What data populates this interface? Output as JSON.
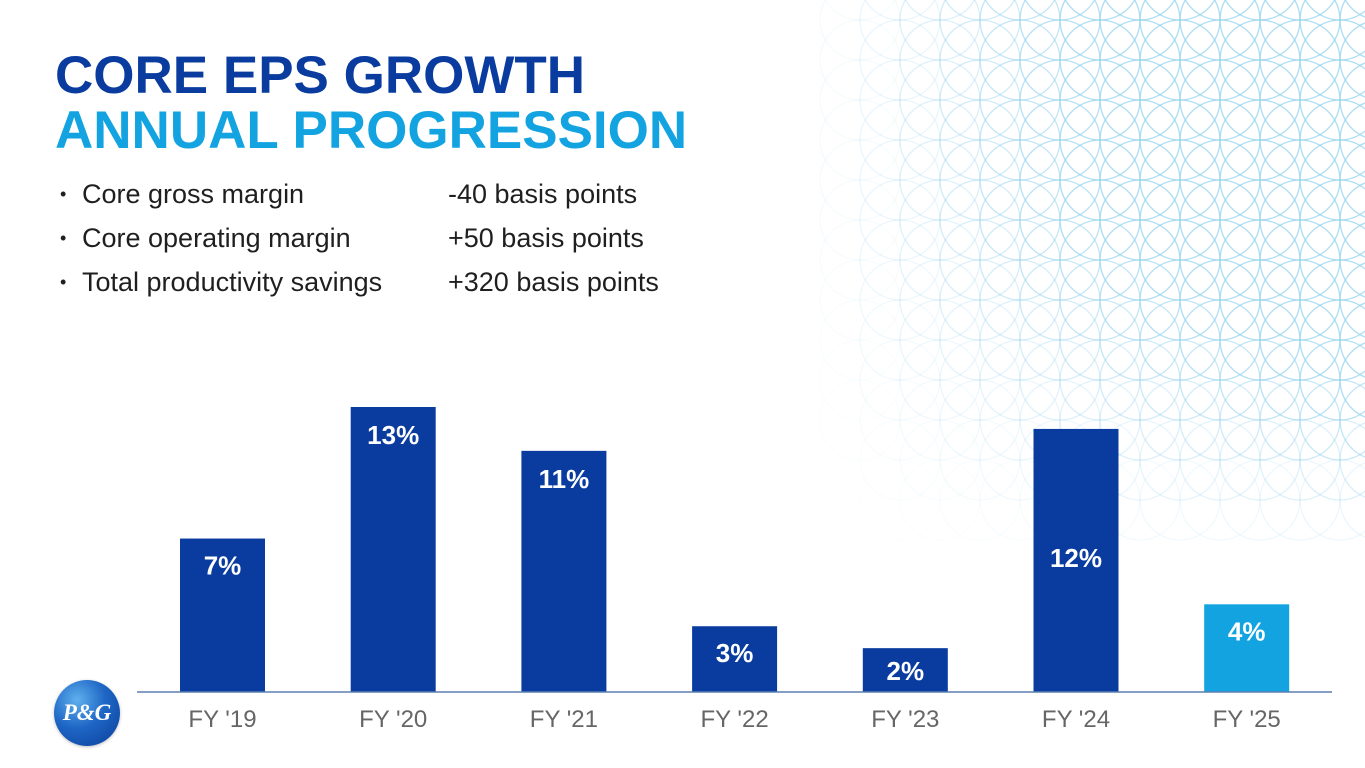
{
  "title": {
    "line1": "CORE EPS GROWTH",
    "line2": "ANNUAL PROGRESSION",
    "line1_color": "#0a3ca0",
    "line2_color": "#12a3e0"
  },
  "bullets": [
    {
      "marker": "•",
      "label": "Core gross margin",
      "value": "-40 basis points"
    },
    {
      "marker": "•",
      "label": "Core operating margin",
      "value": "+50 basis points"
    },
    {
      "marker": "•",
      "label": "Total productivity savings",
      "value": "+320 basis points"
    }
  ],
  "chart_data": {
    "type": "bar",
    "title": "",
    "xlabel": "",
    "ylabel": "",
    "categories": [
      "FY '19",
      "FY '20",
      "FY '21",
      "FY '22",
      "FY '23",
      "FY '24",
      "FY '25"
    ],
    "values": [
      7,
      13,
      11,
      3,
      2,
      12,
      4
    ],
    "labels": [
      "7%",
      "13%",
      "11%",
      "3%",
      "2%",
      "12%",
      "4%"
    ],
    "ylim": [
      0,
      13
    ],
    "grid": false,
    "legend": "none",
    "bar_color": "#0a3ca0",
    "highlight_index": 6,
    "highlight_color": "#12a3e0",
    "axis_color": "#5b7fb0",
    "label_color": "#ffffff",
    "tick_color": "#666666"
  },
  "logo": {
    "text": "P&G"
  },
  "decor": {
    "pattern_color": "#8fd0ee"
  }
}
